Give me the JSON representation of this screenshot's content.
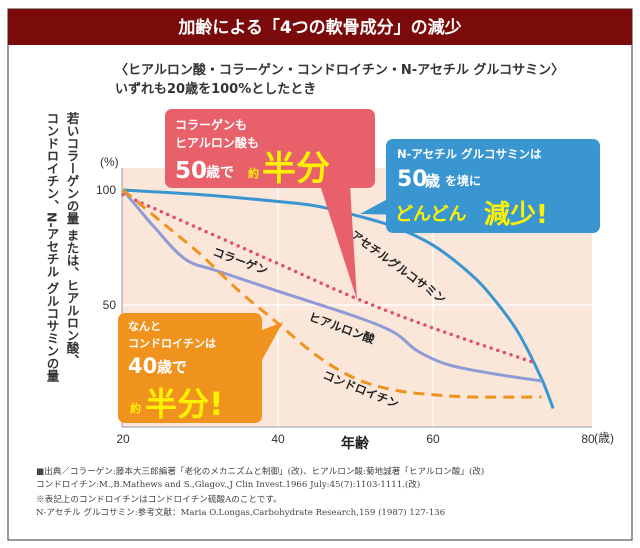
{
  "header": {
    "title": "加齢による「4つの軟骨成分」の減少"
  },
  "subtitle": {
    "line1": "〈ヒアルロン酸・コラーゲン・コンドロイチン・N-アセチル グルコサミン〉",
    "line2": "いずれも20歳を100%としたとき"
  },
  "callouts": {
    "collagen": {
      "line1": "コラーゲンも",
      "line2": "ヒアルロン酸も",
      "age": "50",
      "sai_de": "歳で",
      "yaku": "約",
      "half": "半分",
      "color": "#e8606a"
    },
    "glucosamine": {
      "line1": "N-アセチル グルコサミンは",
      "age": "50",
      "sai": "歳",
      "wo_sakai": "を境に",
      "dondon": "どんどん",
      "decrease": "減少!",
      "color": "#3a96d0"
    },
    "chondroitin": {
      "line1": "なんと",
      "line2": "コンドロイチンは",
      "age": "40",
      "sai_de": "歳で",
      "yaku": "約",
      "half": "半分!",
      "color": "#f0931e"
    }
  },
  "chart_data": {
    "type": "line",
    "ylabel": [
      "若いコラーゲンの量 または、ヒアルロン酸、",
      "コンドロイチン、N-アセチル グルコサミンの量"
    ],
    "yunit": "(%)",
    "xlabel": "年齢",
    "xunit": "(歳)",
    "xlim": [
      20,
      80
    ],
    "ylim": [
      0,
      100
    ],
    "xticks": [
      "20",
      "40",
      "60",
      "80"
    ],
    "yticks": [
      "100",
      "50"
    ],
    "grid": true,
    "series": [
      {
        "name": "N-アセチルグルコサミン",
        "style": "solid",
        "color": "#3a96d0",
        "x": [
          20,
          30,
          40,
          45,
          50,
          55,
          60,
          65,
          68,
          71,
          74,
          75.5
        ],
        "y": [
          100,
          98,
          95,
          93,
          89,
          84,
          76,
          63,
          52,
          38,
          18,
          5
        ]
      },
      {
        "name": "コラーゲン",
        "style": "dotted",
        "color": "#e0506a",
        "x": [
          20,
          30,
          40,
          50,
          60,
          73
        ],
        "y": [
          98,
          83,
          68,
          53,
          40,
          25
        ]
      },
      {
        "name": "ヒアルロン酸",
        "style": "solid",
        "color": "#8f9bd6",
        "x": [
          20,
          24,
          28,
          32,
          40,
          50,
          55,
          58,
          62,
          68,
          74
        ],
        "y": [
          100,
          84,
          70,
          65,
          56,
          45,
          38,
          30,
          24,
          20,
          17
        ]
      },
      {
        "name": "コンドロイチン",
        "style": "dashed",
        "color": "#f0931e",
        "x": [
          20,
          25,
          30,
          35,
          40,
          45,
          50,
          55,
          60,
          65,
          74
        ],
        "y": [
          100,
          86,
          72,
          56,
          42,
          28,
          18,
          13,
          11,
          10,
          10
        ]
      }
    ]
  },
  "footnotes": [
    "■出典／コラーゲン:藤本大三郎編著「老化のメカニズムと制御」(改)、ヒアルロン酸:菊地誠著「ヒアルロン酸」(改)",
    "コンドロイチン:M.,B.Mathews and S.,Glagov.,J Clin Invest.1966 July:45(7):1103-1111.(改)",
    "※表記上のコンドロイチンはコンドロイチン硫酸Aのことです。",
    " N-アセチル グルコサミン:参考文献：Maria O.Longas,Carbohydrate Research,159 (1987) 127-136"
  ]
}
